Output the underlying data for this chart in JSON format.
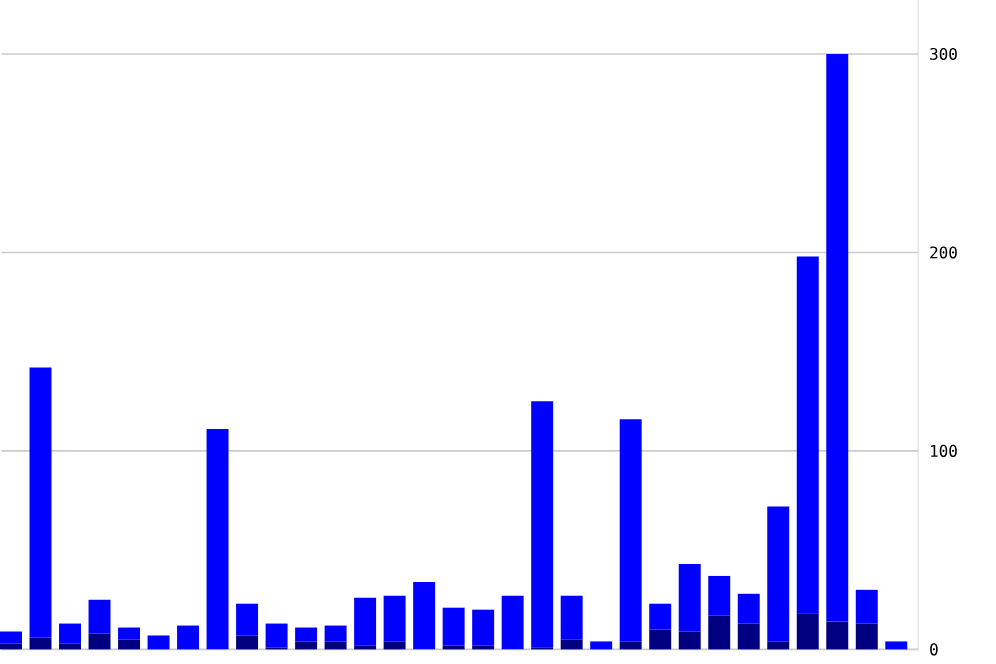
{
  "chart_data": {
    "type": "bar",
    "stacked": true,
    "categories": [
      null,
      null,
      null,
      null,
      null,
      null,
      null,
      null,
      null,
      null,
      null,
      null,
      null,
      null,
      null,
      null,
      null,
      null,
      null,
      null,
      null,
      null,
      null,
      null,
      null,
      null,
      null,
      null,
      null,
      null,
      null
    ],
    "series": [
      {
        "color": "#000080",
        "values": [
          3,
          6,
          3,
          8,
          5,
          0,
          0,
          0,
          7,
          1,
          4,
          4,
          2,
          4,
          0,
          2,
          2,
          0,
          1,
          5,
          0,
          4,
          10,
          9,
          17,
          13,
          4,
          18,
          14,
          13,
          0
        ]
      },
      {
        "color": "#0000ff",
        "values": [
          6,
          136,
          10,
          17,
          6,
          7,
          12,
          111,
          16,
          12,
          7,
          8,
          24,
          23,
          34,
          19,
          18,
          27,
          124,
          22,
          4,
          112,
          13,
          34,
          20,
          15,
          68,
          180,
          286,
          17,
          4
        ]
      }
    ],
    "ylim": [
      0,
      327
    ],
    "yticks": [
      0,
      100,
      200,
      300
    ],
    "grid": "y"
  }
}
